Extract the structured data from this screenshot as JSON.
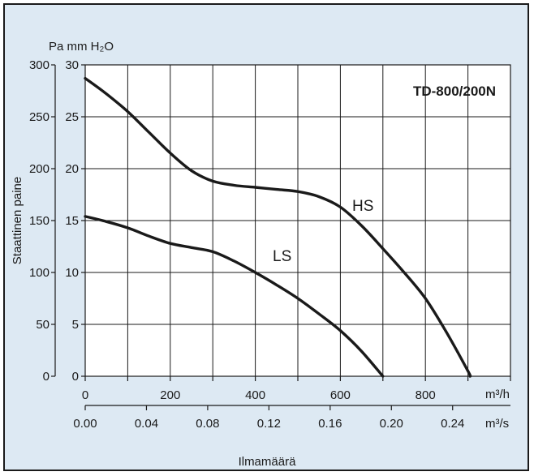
{
  "chart_data": {
    "type": "line",
    "title": "TD-800/200N",
    "xlabel": "Ilmamäärä",
    "ylabel": "Staattinen paine",
    "x_unit_primary": "m³/h",
    "x_unit_secondary": "m³/s",
    "y_unit_pa": "Pa",
    "y_unit_mmh2o": "mm H₂O",
    "xlim": [
      0,
      1000
    ],
    "ylim": [
      0,
      300
    ],
    "grid": true,
    "x_ticks": [
      0,
      100,
      200,
      300,
      400,
      500,
      600,
      700,
      800,
      900,
      1000
    ],
    "x_tick_labels": [
      "0",
      "",
      "200",
      "",
      "400",
      "",
      "600",
      "",
      "800",
      "",
      ""
    ],
    "x_secondary_tick_labels": [
      "0.00",
      "0.04",
      "0.08",
      "0.12",
      "0.16",
      "0.20",
      "0.24"
    ],
    "y_ticks_pa": [
      "0",
      "50",
      "100",
      "150",
      "200",
      "250",
      "300"
    ],
    "y_ticks_mmh2o": [
      "0",
      "5",
      "10",
      "15",
      "20",
      "25",
      "30"
    ],
    "series": [
      {
        "name": "HS",
        "x": [
          0,
          50,
          100,
          150,
          200,
          250,
          300,
          350,
          400,
          450,
          500,
          550,
          600,
          650,
          700,
          750,
          800,
          850,
          900,
          905
        ],
        "y": [
          287,
          272,
          255,
          235,
          215,
          198,
          188,
          184,
          182,
          180,
          178,
          173,
          163,
          145,
          123,
          100,
          75,
          42,
          5,
          0
        ]
      },
      {
        "name": "LS",
        "x": [
          0,
          50,
          100,
          150,
          200,
          250,
          300,
          350,
          400,
          450,
          500,
          550,
          600,
          650,
          700
        ],
        "y": [
          154,
          149,
          143,
          135,
          128,
          124,
          120,
          111,
          100,
          88,
          75,
          60,
          44,
          24,
          0
        ]
      }
    ]
  }
}
